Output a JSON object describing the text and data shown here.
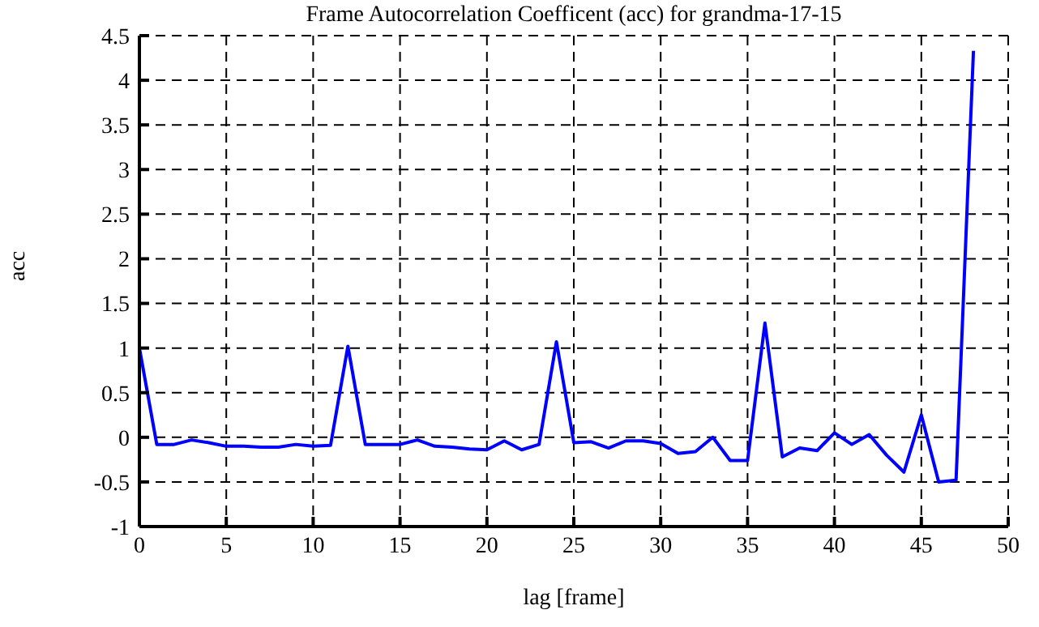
{
  "chart_data": {
    "type": "line",
    "title": "Frame Autocorrelation Coefficent (acc) for grandma-17-15",
    "xlabel": "lag [frame]",
    "ylabel": "acc",
    "x": [
      0,
      1,
      2,
      3,
      4,
      5,
      6,
      7,
      8,
      9,
      10,
      11,
      12,
      13,
      14,
      15,
      16,
      17,
      18,
      19,
      20,
      21,
      22,
      23,
      24,
      25,
      26,
      27,
      28,
      29,
      30,
      31,
      32,
      33,
      34,
      35,
      36,
      37,
      38,
      39,
      40,
      41,
      42,
      43,
      44,
      45,
      46,
      47,
      48
    ],
    "series": [
      {
        "color": "#0000ff",
        "values": [
          1,
          -0.08,
          -0.08,
          -0.03,
          -0.06,
          -0.1,
          -0.1,
          -0.11,
          -0.11,
          -0.08,
          -0.1,
          -0.09,
          1.02,
          -0.08,
          -0.08,
          -0.08,
          -0.03,
          -0.1,
          -0.11,
          -0.13,
          -0.14,
          -0.04,
          -0.14,
          -0.08,
          1.07,
          -0.06,
          -0.05,
          -0.12,
          -0.04,
          -0.04,
          -0.07,
          -0.18,
          -0.16,
          0,
          -0.26,
          -0.26,
          1.28,
          -0.22,
          -0.12,
          -0.15,
          0.05,
          -0.08,
          0.03,
          -0.2,
          -0.39,
          0.25,
          -0.5,
          -0.48,
          4.33
        ]
      }
    ],
    "xlim": [
      0,
      50
    ],
    "xticks": [
      0,
      5,
      10,
      15,
      20,
      25,
      30,
      35,
      40,
      45,
      50
    ],
    "ylim": [
      -1,
      4.5
    ],
    "yticks": [
      -1,
      -0.5,
      0,
      0.5,
      1,
      1.5,
      2,
      2.5,
      3,
      3.5,
      4,
      4.5
    ],
    "grid": true,
    "legend": false,
    "marker": "none",
    "line_style": "solid"
  }
}
